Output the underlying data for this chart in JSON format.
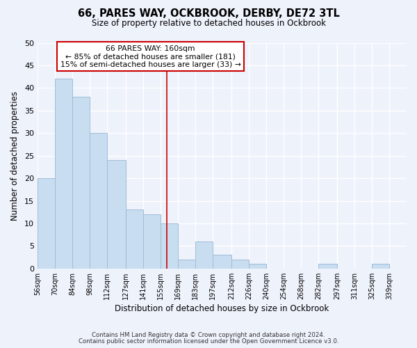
{
  "title": "66, PARES WAY, OCKBROOK, DERBY, DE72 3TL",
  "subtitle": "Size of property relative to detached houses in Ockbrook",
  "xlabel": "Distribution of detached houses by size in Ockbrook",
  "ylabel": "Number of detached properties",
  "bar_color": "#c8ddf0",
  "bar_edge_color": "#a0bcd8",
  "background_color": "#eef2fb",
  "grid_color": "white",
  "bin_labels": [
    "56sqm",
    "70sqm",
    "84sqm",
    "98sqm",
    "112sqm",
    "127sqm",
    "141sqm",
    "155sqm",
    "169sqm",
    "183sqm",
    "197sqm",
    "212sqm",
    "226sqm",
    "240sqm",
    "254sqm",
    "268sqm",
    "282sqm",
    "297sqm",
    "311sqm",
    "325sqm",
    "339sqm"
  ],
  "bin_edges": [
    56,
    70,
    84,
    98,
    112,
    127,
    141,
    155,
    169,
    183,
    197,
    212,
    226,
    240,
    254,
    268,
    282,
    297,
    311,
    325,
    339,
    353
  ],
  "counts": [
    20,
    42,
    38,
    30,
    24,
    13,
    12,
    10,
    2,
    6,
    3,
    2,
    1,
    0,
    0,
    0,
    1,
    0,
    0,
    1,
    0
  ],
  "property_value": 160,
  "property_label": "66 PARES WAY: 160sqm",
  "annotation_line1": "← 85% of detached houses are smaller (181)",
  "annotation_line2": "15% of semi-detached houses are larger (33) →",
  "vline_color": "#cc0000",
  "annotation_box_edge": "#cc0000",
  "ylim": [
    0,
    50
  ],
  "footer1": "Contains HM Land Registry data © Crown copyright and database right 2024.",
  "footer2": "Contains public sector information licensed under the Open Government Licence v3.0."
}
